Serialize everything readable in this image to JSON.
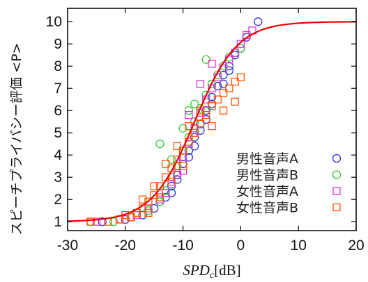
{
  "chart_data": {
    "type": "scatter",
    "xlabel": "SPD",
    "xlabel_sub": "c",
    "xlabel_unit": "[dB]",
    "ylabel": "スピーチプライバシー評価 <P>",
    "xlim": [
      -30,
      20
    ],
    "ylim": [
      0.6,
      10.6
    ],
    "x_ticks": [
      -30,
      -20,
      -10,
      0,
      10,
      20
    ],
    "y_ticks": [
      1,
      2,
      3,
      4,
      5,
      6,
      7,
      8,
      9,
      10
    ],
    "grid": false,
    "legend_position": "right-inside",
    "series": [
      {
        "name": "男性音声A",
        "marker": "circle",
        "color": "#3333cc",
        "points": [
          [
            -24,
            1.0
          ],
          [
            -20,
            1.1
          ],
          [
            -17,
            1.3
          ],
          [
            -15,
            1.6
          ],
          [
            -13,
            2.1
          ],
          [
            -12,
            2.6
          ],
          [
            -11,
            3.1
          ],
          [
            -10,
            3.6
          ],
          [
            -9,
            4.2
          ],
          [
            -8,
            4.8
          ],
          [
            -7,
            5.4
          ],
          [
            -6,
            6.0
          ],
          [
            -5,
            6.6
          ],
          [
            -4,
            7.1
          ],
          [
            -3,
            7.6
          ],
          [
            -2,
            8.0
          ],
          [
            -1,
            8.5
          ],
          [
            0,
            8.8
          ],
          [
            1,
            9.3
          ],
          [
            3,
            10.0
          ],
          [
            -14,
            1.9
          ],
          [
            -11,
            2.9
          ],
          [
            -9,
            3.9
          ],
          [
            -7,
            5.1
          ],
          [
            -5,
            6.3
          ],
          [
            -3,
            7.2
          ],
          [
            -8,
            4.4
          ],
          [
            -12,
            2.3
          ],
          [
            -6,
            5.6
          ],
          [
            -2,
            7.8
          ]
        ]
      },
      {
        "name": "男性音声B",
        "marker": "circle",
        "color": "#33cc33",
        "points": [
          [
            -26,
            1.0
          ],
          [
            -22,
            1.0
          ],
          [
            -19,
            1.2
          ],
          [
            -16,
            1.5
          ],
          [
            -14,
            1.9
          ],
          [
            -13,
            2.4
          ],
          [
            -12,
            3.0
          ],
          [
            -11,
            3.5
          ],
          [
            -10,
            4.2
          ],
          [
            -9,
            4.8
          ],
          [
            -8,
            5.5
          ],
          [
            -7,
            6.1
          ],
          [
            -6,
            6.7
          ],
          [
            -5,
            7.2
          ],
          [
            -4,
            7.6
          ],
          [
            -3,
            8.0
          ],
          [
            -2,
            8.4
          ],
          [
            -1,
            8.6
          ],
          [
            0,
            8.8
          ],
          [
            -9,
            6.0
          ],
          [
            -8,
            6.3
          ],
          [
            -14,
            4.5
          ],
          [
            -6,
            8.3
          ],
          [
            -10,
            5.2
          ],
          [
            -12,
            3.8
          ]
        ]
      },
      {
        "name": "女性音声A",
        "marker": "square",
        "color": "#dd33dd",
        "points": [
          [
            -25,
            1.0
          ],
          [
            -21,
            1.1
          ],
          [
            -18,
            1.3
          ],
          [
            -16,
            1.6
          ],
          [
            -14,
            2.0
          ],
          [
            -12,
            2.7
          ],
          [
            -11,
            3.2
          ],
          [
            -10,
            3.9
          ],
          [
            -9,
            4.5
          ],
          [
            -8,
            5.2
          ],
          [
            -7,
            5.9
          ],
          [
            -6,
            6.5
          ],
          [
            -5,
            7.0
          ],
          [
            -4,
            7.5
          ],
          [
            -3,
            7.9
          ],
          [
            -2,
            8.3
          ],
          [
            -1,
            8.6
          ],
          [
            0,
            9.0
          ],
          [
            1,
            9.4
          ],
          [
            2,
            9.6
          ],
          [
            -7,
            7.2
          ],
          [
            -5,
            8.1
          ],
          [
            -9,
            5.8
          ],
          [
            -13,
            2.3
          ],
          [
            -10,
            3.3
          ]
        ]
      },
      {
        "name": "女性音声B",
        "marker": "square",
        "color": "#ff5500",
        "points": [
          [
            -26,
            1.0
          ],
          [
            -23,
            1.0
          ],
          [
            -21,
            1.1
          ],
          [
            -19,
            1.2
          ],
          [
            -18,
            1.4
          ],
          [
            -17,
            1.6
          ],
          [
            -16,
            1.9
          ],
          [
            -15,
            2.2
          ],
          [
            -14,
            2.6
          ],
          [
            -13,
            3.0
          ],
          [
            -12,
            3.4
          ],
          [
            -11,
            3.8
          ],
          [
            -10,
            4.2
          ],
          [
            -9,
            4.6
          ],
          [
            -8,
            5.0
          ],
          [
            -7,
            5.4
          ],
          [
            -6,
            5.8
          ],
          [
            -5,
            6.2
          ],
          [
            -4,
            6.5
          ],
          [
            -3,
            6.8
          ],
          [
            -2,
            7.0
          ],
          [
            -1,
            7.3
          ],
          [
            0,
            7.5
          ],
          [
            -17,
            2.0
          ],
          [
            -15,
            2.6
          ],
          [
            -13,
            3.6
          ],
          [
            -11,
            4.4
          ],
          [
            -9,
            5.3
          ],
          [
            -7,
            6.0
          ],
          [
            -5,
            5.3
          ],
          [
            -16,
            1.4
          ],
          [
            -14,
            2.1
          ],
          [
            -12,
            2.8
          ],
          [
            -20,
            1.3
          ],
          [
            -3,
            6.0
          ],
          [
            -1,
            6.4
          ],
          [
            -10,
            3.5
          ]
        ]
      }
    ],
    "fit_curve": {
      "type": "logistic",
      "lower": 1,
      "upper": 10,
      "midpoint": -8,
      "scale": 3.7,
      "color": "#ee0000"
    }
  }
}
